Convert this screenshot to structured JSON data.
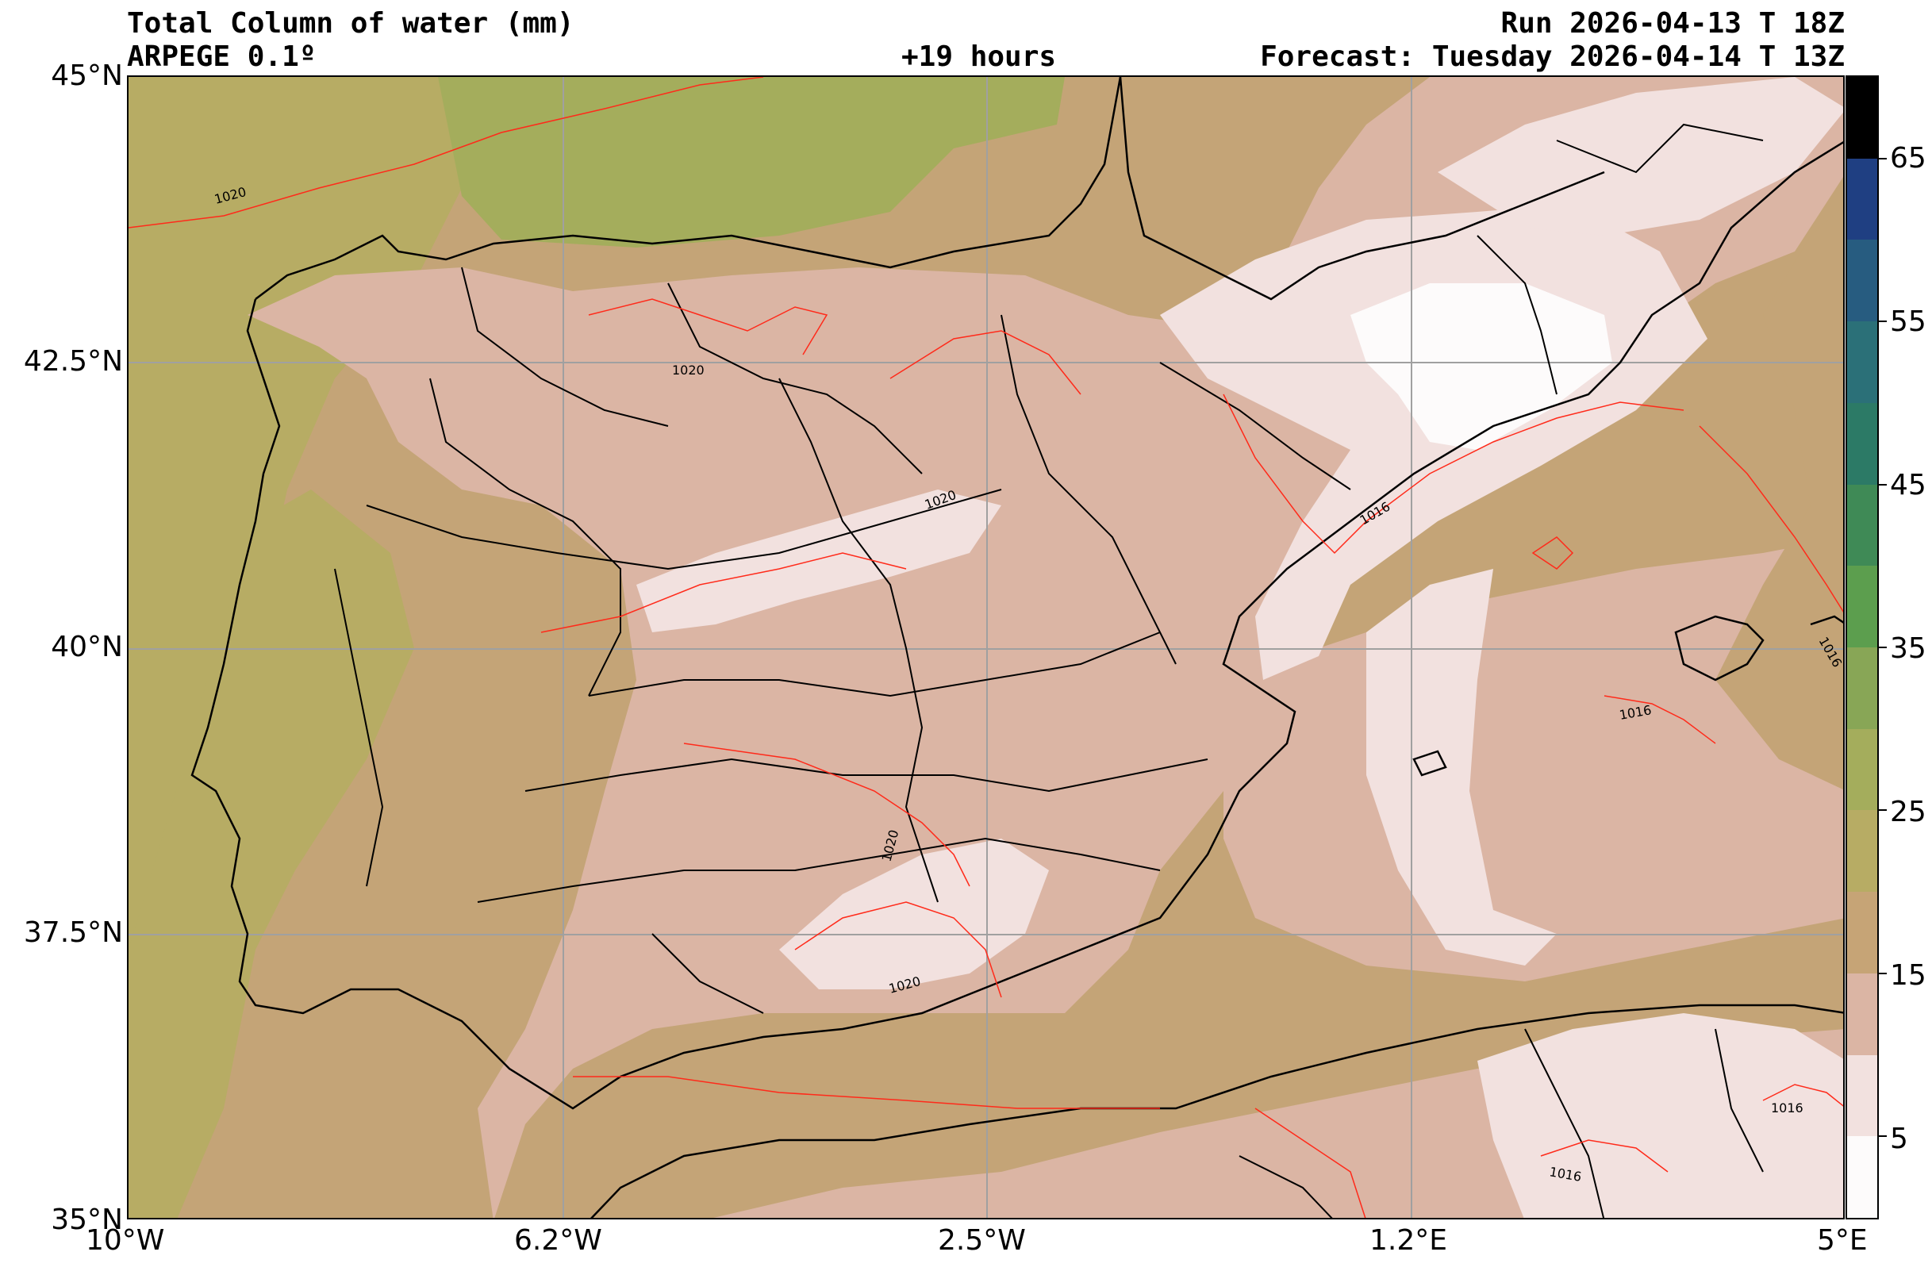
{
  "header": {
    "title": "Total Column of water (mm)",
    "model": "ARPEGE 0.1º",
    "lead": "+19 hours",
    "run": "Run 2026-04-13 T 18Z",
    "forecast": "Forecast: Tuesday 2026-04-14 T 13Z"
  },
  "map": {
    "lon_range": [
      -10,
      5
    ],
    "lat_range": [
      35,
      45
    ],
    "x_ticks": [
      "10°W",
      "6.2°W",
      "2.5°W",
      "1.2°E",
      "5°E"
    ],
    "y_ticks": [
      "45°N",
      "42.5°N",
      "40°N",
      "37.5°N",
      "35°N"
    ],
    "grid": true,
    "isobar_labels": [
      "1020",
      "1020",
      "1020",
      "1020",
      "1020",
      "1016",
      "1016",
      "1016",
      "1016",
      "1016"
    ],
    "isobar_color": "#ff2a1a",
    "border_color": "#000000"
  },
  "colorbar": {
    "labels": [
      "65",
      "55",
      "45",
      "35",
      "25",
      "15",
      "5"
    ],
    "levels": [
      0,
      5,
      10,
      15,
      20,
      25,
      30,
      35,
      40,
      45,
      50,
      55,
      60,
      65,
      70
    ],
    "colors": [
      "#fdfbfb",
      "#f2e1df",
      "#dbb5a4",
      "#c6a476",
      "#b7ac64",
      "#a4ad5c",
      "#88a656",
      "#5c9e4e",
      "#3f8a56",
      "#2c7a66",
      "#2b7078",
      "#275c80",
      "#1f3f82",
      "#000000"
    ]
  }
}
